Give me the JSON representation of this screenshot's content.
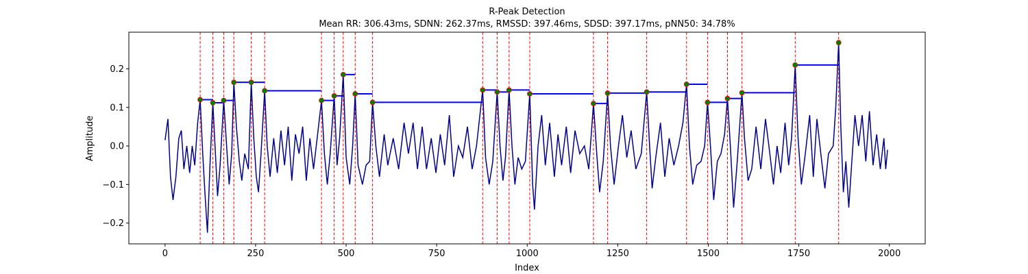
{
  "chart_data": {
    "type": "line",
    "title": "R-Peak Detection",
    "subtitle": "Mean RR: 306.43ms, SDNN: 262.37ms, RMSSD: 397.46ms, SDSD: 397.17ms, pNN50: 34.78%",
    "x_label": "Index",
    "y_label": "Amplitude",
    "color": "#00008b",
    "x": [
      0,
      8,
      15,
      22,
      30,
      38,
      45,
      52,
      60,
      68,
      75,
      82,
      90,
      97,
      104,
      110,
      117,
      124,
      132,
      138,
      145,
      152,
      162,
      170,
      177,
      184,
      190,
      197,
      205,
      212,
      220,
      230,
      238,
      245,
      252,
      258,
      265,
      275,
      282,
      290,
      300,
      310,
      320,
      330,
      340,
      350,
      360,
      370,
      380,
      390,
      400,
      410,
      420,
      432,
      440,
      448,
      456,
      467,
      475,
      482,
      492,
      500,
      510,
      518,
      525,
      533,
      545,
      555,
      565,
      573,
      582,
      592,
      605,
      615,
      630,
      645,
      660,
      672,
      685,
      697,
      710,
      722,
      735,
      748,
      760,
      772,
      785,
      797,
      810,
      822,
      835,
      848,
      860,
      877,
      885,
      895,
      905,
      917,
      925,
      933,
      940,
      950,
      958,
      966,
      975,
      985,
      995,
      1007,
      1015,
      1020,
      1030,
      1040,
      1050,
      1062,
      1075,
      1085,
      1095,
      1108,
      1120,
      1132,
      1145,
      1158,
      1170,
      1183,
      1192,
      1200,
      1210,
      1222,
      1230,
      1240,
      1252,
      1263,
      1275,
      1287,
      1300,
      1315,
      1330,
      1338,
      1345,
      1355,
      1368,
      1380,
      1392,
      1405,
      1418,
      1430,
      1440,
      1448,
      1457,
      1468,
      1480,
      1490,
      1498,
      1506,
      1515,
      1525,
      1535,
      1545,
      1553,
      1561,
      1570,
      1580,
      1593,
      1600,
      1610,
      1620,
      1632,
      1645,
      1658,
      1670,
      1680,
      1690,
      1700,
      1712,
      1722,
      1730,
      1740,
      1748,
      1757,
      1768,
      1780,
      1790,
      1800,
      1812,
      1822,
      1832,
      1845,
      1852,
      1860,
      1866,
      1873,
      1880,
      1888,
      1895,
      1905,
      1915,
      1925,
      1935,
      1945,
      1955,
      1965,
      1975,
      1985,
      1990,
      1995
    ],
    "values": [
      0.015,
      0.07,
      -0.08,
      -0.14,
      -0.08,
      0.02,
      0.04,
      -0.06,
      0.0,
      -0.07,
      0.0,
      -0.05,
      0.06,
      0.12,
      -0.02,
      -0.12,
      -0.225,
      -0.05,
      0.112,
      0.0,
      -0.13,
      -0.05,
      0.118,
      0.0,
      -0.1,
      -0.02,
      0.165,
      0.05,
      -0.04,
      -0.09,
      -0.02,
      -0.06,
      0.165,
      0.02,
      -0.08,
      -0.12,
      -0.02,
      0.143,
      0.0,
      -0.08,
      0.02,
      -0.07,
      0.04,
      -0.05,
      0.05,
      -0.09,
      0.03,
      -0.02,
      0.05,
      -0.09,
      0.02,
      -0.06,
      0.02,
      0.118,
      -0.02,
      -0.1,
      -0.02,
      0.13,
      -0.05,
      0.02,
      0.185,
      -0.03,
      -0.1,
      0.0,
      0.135,
      -0.05,
      -0.1,
      -0.05,
      -0.04,
      0.113,
      0.0,
      -0.08,
      0.03,
      -0.05,
      0.02,
      -0.06,
      0.06,
      -0.02,
      0.06,
      -0.06,
      0.05,
      -0.06,
      0.02,
      -0.07,
      0.03,
      -0.05,
      0.08,
      -0.08,
      0.0,
      -0.03,
      0.05,
      -0.06,
      0.0,
      0.145,
      -0.03,
      -0.1,
      -0.04,
      0.14,
      0.0,
      -0.09,
      -0.03,
      0.145,
      0.0,
      -0.1,
      -0.03,
      -0.06,
      -0.04,
      0.135,
      -0.1,
      -0.165,
      0.0,
      0.08,
      -0.05,
      0.06,
      -0.08,
      0.03,
      -0.05,
      0.05,
      -0.07,
      0.04,
      -0.02,
      0.0,
      -0.06,
      0.11,
      -0.02,
      -0.12,
      -0.04,
      0.137,
      0.0,
      -0.1,
      0.0,
      0.08,
      -0.03,
      0.04,
      -0.06,
      -0.02,
      0.14,
      0.0,
      -0.11,
      -0.03,
      0.06,
      -0.08,
      0.02,
      -0.05,
      0.0,
      0.06,
      0.16,
      0.0,
      -0.1,
      -0.05,
      -0.04,
      0.0,
      0.113,
      0.0,
      -0.14,
      -0.04,
      -0.02,
      0.03,
      0.123,
      0.0,
      -0.16,
      -0.04,
      0.138,
      0.02,
      -0.09,
      -0.06,
      0.05,
      -0.06,
      0.07,
      -0.02,
      -0.1,
      0.0,
      -0.07,
      0.06,
      -0.05,
      0.02,
      0.21,
      0.02,
      -0.1,
      -0.02,
      0.08,
      -0.08,
      0.07,
      -0.03,
      -0.11,
      -0.02,
      0.0,
      0.1,
      0.268,
      0.05,
      -0.12,
      -0.04,
      -0.16,
      -0.06,
      0.08,
      0.0,
      0.08,
      -0.04,
      0.09,
      -0.05,
      0.03,
      -0.06,
      0.02,
      -0.06,
      -0.01
    ],
    "peaks": {
      "x": [
        97,
        132,
        162,
        190,
        238,
        275,
        432,
        467,
        492,
        525,
        573,
        877,
        917,
        950,
        1007,
        1183,
        1222,
        1330,
        1440,
        1498,
        1553,
        1593,
        1740,
        1860
      ],
      "values": [
        0.12,
        0.112,
        0.118,
        0.165,
        0.165,
        0.143,
        0.118,
        0.13,
        0.185,
        0.135,
        0.113,
        0.145,
        0.14,
        0.145,
        0.135,
        0.11,
        0.137,
        0.14,
        0.16,
        0.113,
        0.123,
        0.138,
        0.21,
        0.268
      ],
      "marker_color": "green",
      "marker_edge": "red",
      "line_color": "red",
      "interval_color": "blue"
    },
    "xlim": [
      -100,
      2099
    ],
    "ylim": [
      -0.254,
      0.295
    ],
    "xticks": [
      0,
      250,
      500,
      750,
      1000,
      1250,
      1500,
      1750,
      2000
    ],
    "yticks": [
      {
        "value": -0.2,
        "label": "−0.2"
      },
      {
        "value": -0.1,
        "label": "−0.1"
      },
      {
        "value": 0,
        "label": "0.0"
      },
      0.1,
      0.2
    ]
  }
}
